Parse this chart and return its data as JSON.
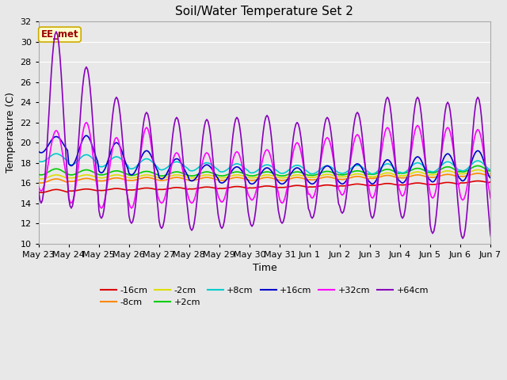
{
  "title": "Soil/Water Temperature Set 2",
  "xlabel": "Time",
  "ylabel": "Temperature (C)",
  "ylim": [
    10,
    32
  ],
  "yticks": [
    10,
    12,
    14,
    16,
    18,
    20,
    22,
    24,
    26,
    28,
    30,
    32
  ],
  "background_color": "#e8e8e8",
  "plot_bg_color": "#e8e8e8",
  "grid_color": "#ffffff",
  "annotation_text": "EE_met",
  "annotation_bg": "#ffffcc",
  "annotation_border": "#ccaa00",
  "annotation_text_color": "#990000",
  "series": {
    "-16cm": {
      "color": "#dd0000",
      "lw": 1.2
    },
    "-8cm": {
      "color": "#ff8800",
      "lw": 1.2
    },
    "-2cm": {
      "color": "#dddd00",
      "lw": 1.2
    },
    "+2cm": {
      "color": "#00cc00",
      "lw": 1.2
    },
    "+8cm": {
      "color": "#00cccc",
      "lw": 1.2
    },
    "+16cm": {
      "color": "#0000cc",
      "lw": 1.2
    },
    "+32cm": {
      "color": "#ff00ff",
      "lw": 1.2
    },
    "+64cm": {
      "color": "#8800bb",
      "lw": 1.2
    }
  },
  "x_tick_labels": [
    "May 23",
    "May 24",
    "May 25",
    "May 26",
    "May 27",
    "May 28",
    "May 29",
    "May 30",
    "May 31",
    "Jun 1",
    "Jun 2",
    "Jun 3",
    "Jun 4",
    "Jun 5",
    "Jun 6",
    "Jun 7"
  ],
  "n_days": 16,
  "pts_per_day": 24,
  "peak_hour": 14,
  "trough_hour": 4,
  "series_data": {
    "-16cm": {
      "base": [
        15.2,
        15.3,
        15.35,
        15.4,
        15.45,
        15.5,
        15.55,
        15.6,
        15.65,
        15.7,
        15.8,
        15.85,
        15.9,
        15.95,
        16.1,
        16.2
      ],
      "amp": [
        0.15,
        0.1,
        0.1,
        0.1,
        0.1,
        0.1,
        0.1,
        0.1,
        0.1,
        0.1,
        0.1,
        0.1,
        0.1,
        0.1,
        0.1,
        0.1
      ]
    },
    "-8cm": {
      "base": [
        16.2,
        16.3,
        16.35,
        16.4,
        16.4,
        16.4,
        16.4,
        16.4,
        16.4,
        16.45,
        16.5,
        16.6,
        16.65,
        16.7,
        16.8,
        16.9
      ],
      "amp": [
        0.2,
        0.15,
        0.15,
        0.15,
        0.15,
        0.15,
        0.15,
        0.15,
        0.15,
        0.15,
        0.15,
        0.15,
        0.15,
        0.15,
        0.15,
        0.15
      ]
    },
    "-2cm": {
      "base": [
        16.6,
        16.65,
        16.65,
        16.65,
        16.65,
        16.65,
        16.65,
        16.65,
        16.65,
        16.7,
        16.75,
        16.8,
        16.9,
        17.0,
        17.1,
        17.1
      ],
      "amp": [
        0.2,
        0.15,
        0.15,
        0.15,
        0.15,
        0.15,
        0.15,
        0.15,
        0.15,
        0.15,
        0.15,
        0.2,
        0.2,
        0.2,
        0.2,
        0.2
      ]
    },
    "+2cm": {
      "base": [
        17.1,
        17.05,
        17.0,
        16.95,
        16.9,
        16.9,
        16.9,
        16.9,
        16.9,
        16.95,
        17.0,
        17.1,
        17.2,
        17.3,
        17.4,
        17.5
      ],
      "amp": [
        0.3,
        0.25,
        0.2,
        0.2,
        0.2,
        0.2,
        0.2,
        0.2,
        0.2,
        0.2,
        0.2,
        0.25,
        0.25,
        0.3,
        0.3,
        0.35
      ]
    },
    "+8cm": {
      "base": [
        18.5,
        18.3,
        18.1,
        17.9,
        17.7,
        17.6,
        17.5,
        17.4,
        17.35,
        17.3,
        17.35,
        17.4,
        17.5,
        17.6,
        17.7,
        17.8
      ],
      "amp": [
        0.4,
        0.5,
        0.5,
        0.5,
        0.4,
        0.4,
        0.4,
        0.4,
        0.4,
        0.4,
        0.4,
        0.5,
        0.5,
        0.5,
        0.5,
        0.6
      ]
    },
    "+16cm": {
      "base": [
        19.8,
        19.2,
        18.5,
        18.0,
        17.4,
        17.0,
        16.8,
        16.7,
        16.7,
        16.8,
        16.9,
        17.1,
        17.3,
        17.5,
        17.7,
        17.9
      ],
      "amp": [
        0.8,
        1.5,
        1.5,
        1.2,
        1.0,
        0.8,
        0.8,
        0.8,
        0.8,
        0.9,
        1.0,
        1.2,
        1.3,
        1.4,
        1.5,
        1.6
      ]
    },
    "+32cm": {
      "base": [
        18.2,
        18.0,
        17.0,
        17.5,
        16.5,
        16.5,
        16.6,
        16.8,
        17.0,
        17.5,
        17.8,
        18.0,
        18.2,
        18.0,
        17.8,
        18.0
      ],
      "amp": [
        3.0,
        4.0,
        3.5,
        4.0,
        2.5,
        2.5,
        2.5,
        2.5,
        3.0,
        3.0,
        3.0,
        3.5,
        3.5,
        3.5,
        3.5,
        4.0
      ]
    },
    "+64cm": {
      "base": [
        22.5,
        20.5,
        18.5,
        17.5,
        17.0,
        16.8,
        17.0,
        17.2,
        17.0,
        17.5,
        18.0,
        18.5,
        18.5,
        17.5,
        17.5,
        17.0
      ],
      "amp": [
        8.5,
        7.0,
        6.0,
        5.5,
        5.5,
        5.5,
        5.5,
        5.5,
        5.0,
        5.0,
        5.0,
        6.0,
        6.0,
        6.5,
        7.0,
        7.0
      ]
    }
  }
}
